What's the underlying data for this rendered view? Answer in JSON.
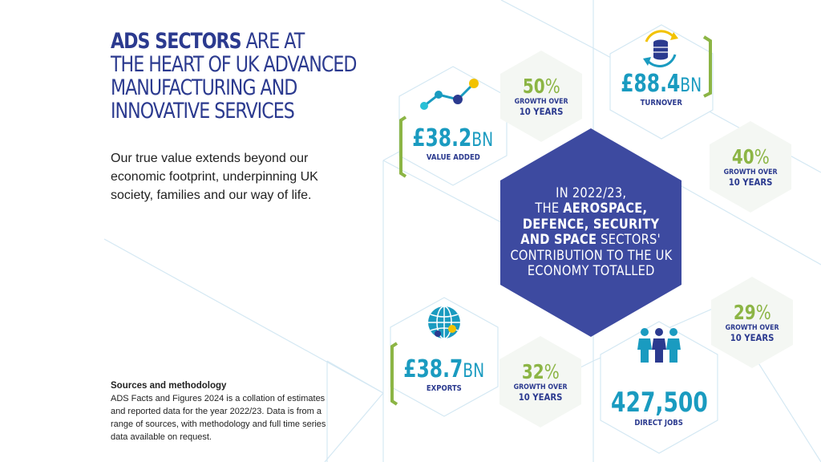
{
  "title": {
    "highlight": "ADS SECTORS",
    "rest_line1": " ARE AT",
    "line2": "THE HEART OF UK ADVANCED",
    "line3": "MANUFACTURING AND",
    "line4": "INNOVATIVE SERVICES"
  },
  "intro": "Our true value extends beyond our economic footprint, underpinning UK society, families and our way of life.",
  "sources": {
    "heading": "Sources and methodology",
    "body": "ADS Facts and Figures 2024 is a collation of estimates and reported data for the year 2022/23. Data is from a range of sources, with methodology and full time series data available on request."
  },
  "central": {
    "line1": "IN 2022/23,",
    "line2_pre": "THE ",
    "line2_bold": "AEROSPACE,",
    "line3_bold": "DEFENCE, SECURITY",
    "line4_bold": "AND SPACE",
    "line4_rest": " SECTORS'",
    "line5": "CONTRIBUTION TO THE UK",
    "line6": "ECONOMY TOTALLED"
  },
  "stats": {
    "value_added": {
      "value": "£38.2",
      "unit": "BN",
      "label": "VALUE ADDED",
      "growth_pct": "50",
      "growth_label": "GROWTH OVER",
      "growth_years": "10 YEARS",
      "icon": "line-graph-icon"
    },
    "turnover": {
      "value": "£88.4",
      "unit": "BN",
      "label": "TURNOVER",
      "growth_pct": "40",
      "growth_label": "GROWTH OVER",
      "growth_years": "10 YEARS",
      "icon": "coin-stack-cycle-icon"
    },
    "exports": {
      "value": "£38.7",
      "unit": "BN",
      "label": "EXPORTS",
      "growth_pct": "32",
      "growth_label": "GROWTH OVER",
      "growth_years": "10 YEARS",
      "icon": "globe-icon"
    },
    "jobs": {
      "value": "427,500",
      "label": "DIRECT JOBS",
      "growth_pct": "29",
      "growth_label": "GROWTH OVER",
      "growth_years": "10 YEARS",
      "icon": "people-icon"
    }
  },
  "percent_sign": "%",
  "colors": {
    "navy": "#2b3a8f",
    "teal": "#1a9bc0",
    "green": "#8cb545",
    "central_hex": "#3d4aa0",
    "line_blue": "#cfe6f2"
  }
}
